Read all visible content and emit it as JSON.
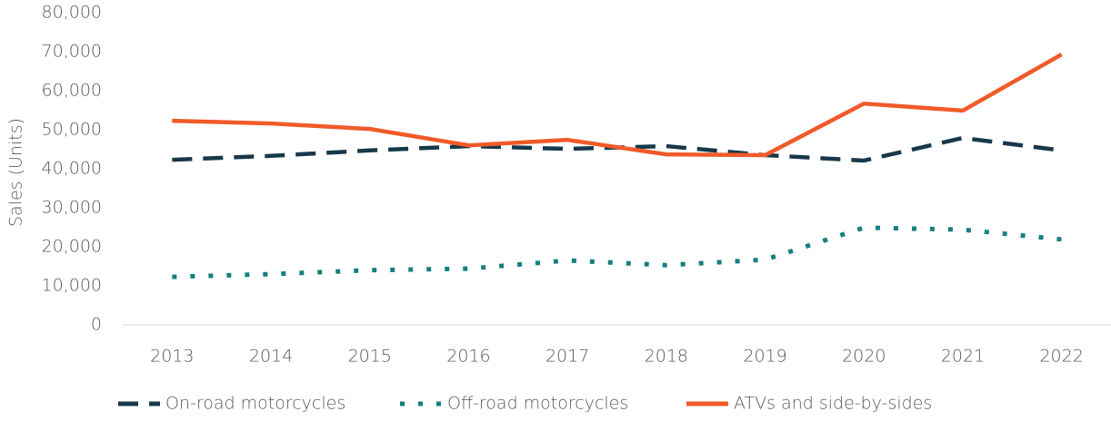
{
  "chart_data": {
    "type": "line",
    "y_label": "Sales (Units)",
    "categories": [
      "2013",
      "2014",
      "2015",
      "2016",
      "2017",
      "2018",
      "2019",
      "2020",
      "2021",
      "2022"
    ],
    "series": [
      {
        "name": "On-road motorcycles",
        "color": "#17394a",
        "dash": "dashed",
        "values": [
          42300,
          43300,
          44700,
          45800,
          45100,
          45800,
          43500,
          42100,
          47900,
          44700
        ]
      },
      {
        "name": "Off-road motorcycles",
        "color": "#15807d",
        "dash": "dotted",
        "values": [
          12300,
          13000,
          14000,
          14400,
          16500,
          15300,
          16700,
          24900,
          24400,
          21900
        ]
      },
      {
        "name": "ATVs and side-by-sides",
        "color": "#f15a29",
        "dash": "solid",
        "values": [
          52300,
          51600,
          50200,
          46000,
          47400,
          43700,
          43500,
          56700,
          54900,
          69300
        ]
      }
    ],
    "ylim": [
      0,
      80000
    ],
    "yticks": [
      0,
      {
        "value": 10000,
        "label": "10,000"
      },
      {
        "value": 20000,
        "label": "20,000"
      },
      {
        "value": 30000,
        "label": "30,000"
      },
      {
        "value": 40000,
        "label": "40,000"
      },
      {
        "value": 50000,
        "label": "50,000"
      },
      {
        "value": 60000,
        "label": "60,000"
      },
      {
        "value": 70000,
        "label": "70,000"
      },
      {
        "value": 80000,
        "label": "80,000"
      }
    ],
    "legend": "bottom"
  }
}
